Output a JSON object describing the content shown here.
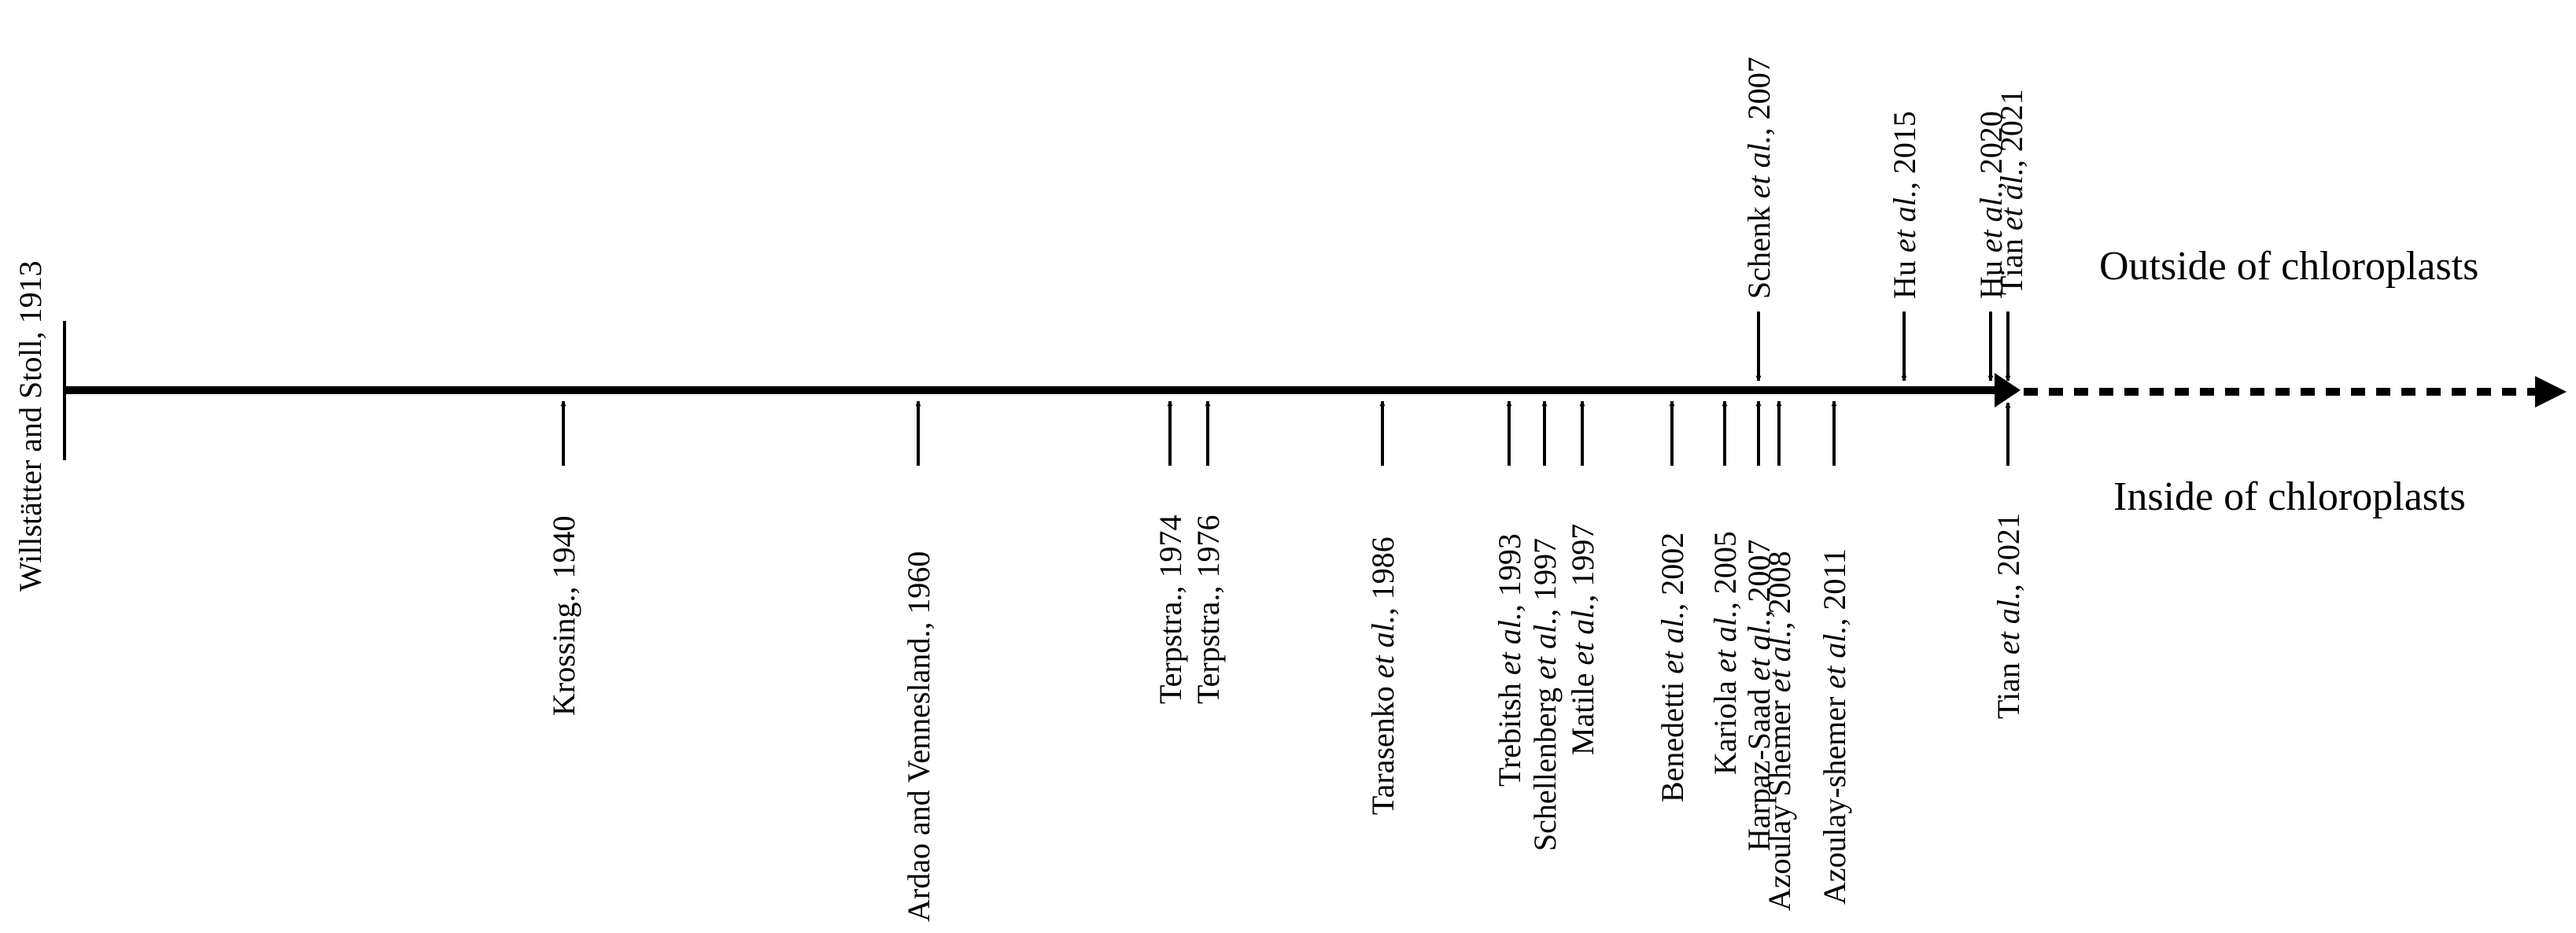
{
  "axis": {
    "start_label": "Willstätter and Stoll, 1913",
    "start_year": 1913,
    "solid_end_year": 2021,
    "line_color": "#000000"
  },
  "regions": {
    "outside_label": "Outside of chloroplasts",
    "inside_label": "Inside of chloroplasts"
  },
  "inside_events": [
    {
      "id": "krossing-1940",
      "author": "Krossing.",
      "etal": false,
      "year_text": ", 1940"
    },
    {
      "id": "ardao-1960",
      "author": "Ardao and Vennesland.",
      "etal": false,
      "year_text": ", 1960"
    },
    {
      "id": "terpstra-1974",
      "author": "Terpstra.",
      "etal": false,
      "year_text": ", 1974"
    },
    {
      "id": "terpstra-1976",
      "author": "Terpstra.",
      "etal": false,
      "year_text": ", 1976"
    },
    {
      "id": "tarasenko-1986",
      "author": "Tarasenko ",
      "etal": true,
      "year_text": ", 1986"
    },
    {
      "id": "trebitsh-1993",
      "author": "Trebitsh ",
      "etal": true,
      "year_text": ", 1993"
    },
    {
      "id": "schellenberg-1997",
      "author": "Schellenberg ",
      "etal": true,
      "year_text": ", 1997"
    },
    {
      "id": "matile-1997",
      "author": "Matile ",
      "etal": true,
      "year_text": ", 1997"
    },
    {
      "id": "benedetti-2002",
      "author": "Benedetti ",
      "etal": true,
      "year_text": ", 2002"
    },
    {
      "id": "kariola-2005",
      "author": "Kariola ",
      "etal": true,
      "year_text": ", 2005"
    },
    {
      "id": "harpaz-saad-2007",
      "author": "Harpaz-Saad ",
      "etal": true,
      "year_text": ", 2007"
    },
    {
      "id": "azoulay-shemer-2008",
      "author": "Azoulay Shemer ",
      "etal": true,
      "year_text": ", 2008"
    },
    {
      "id": "azoulay-shemer-2011",
      "author": "Azoulay-shemer ",
      "etal": true,
      "year_text": ", 2011"
    },
    {
      "id": "tian-2021-inside",
      "author": "Tian ",
      "etal": true,
      "year_text": ", 2021"
    }
  ],
  "outside_events": [
    {
      "id": "schenk-2007",
      "author": "Schenk ",
      "etal": true,
      "year_text": ", 2007"
    },
    {
      "id": "hu-2015",
      "author": "Hu ",
      "etal": true,
      "year_text": ", 2015"
    },
    {
      "id": "hu-2020",
      "author": "Hu ",
      "etal": true,
      "year_text": ", 2020"
    },
    {
      "id": "tian-2021-outside",
      "author": "Tian ",
      "etal": true,
      "year_text": ", 2021"
    }
  ],
  "etal_text": "et al."
}
